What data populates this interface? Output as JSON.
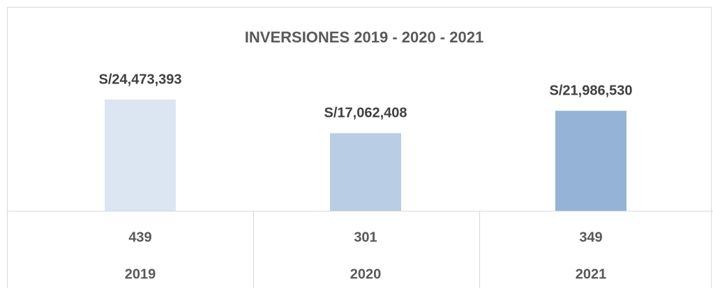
{
  "chart_data": {
    "type": "bar",
    "title": "INVERSIONES 2019 - 2020 - 2021",
    "categories": [
      "2019",
      "2020",
      "2021"
    ],
    "values": [
      24473393,
      17062408,
      21986530
    ],
    "value_labels": [
      "S/24,473,393",
      "S/17,062,408",
      "S/21,986,530"
    ],
    "colors": [
      "#dce6f2",
      "#b9cde5",
      "#95b3d7"
    ],
    "data_table": {
      "rows": [
        [
          439,
          301,
          349
        ]
      ]
    }
  }
}
